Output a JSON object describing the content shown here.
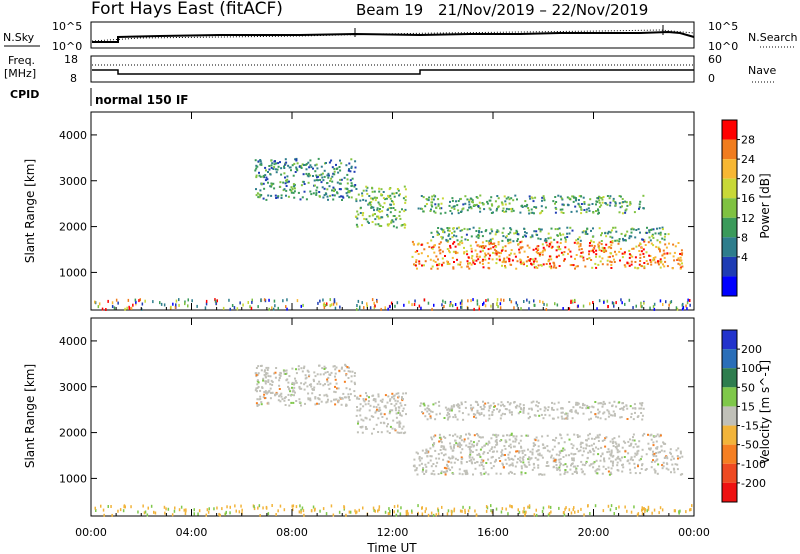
{
  "header": {
    "station": "Fort Hays East (fitACF)",
    "beam": "Beam 19",
    "dates": "21/Nov/2019 – 22/Nov/2019"
  },
  "noise_panel": {
    "left_label": "N.Sky",
    "right_label": "N.Search",
    "tick_top": "10^5",
    "tick_bottom": "10^0"
  },
  "freq_panel": {
    "left_label_1": "Freq.",
    "left_label_2": "[MHz]",
    "right_label": "Nave",
    "left_tick_top": "18",
    "left_tick_bottom": "8",
    "right_tick_top": "60",
    "right_tick_bottom": "0"
  },
  "cpid": {
    "label": "CPID",
    "mode": "normal 150 IF"
  },
  "x_axis": {
    "label": "Time UT",
    "ticks": [
      "00:00",
      "04:00",
      "08:00",
      "12:00",
      "16:00",
      "20:00",
      "00:00"
    ]
  },
  "colors": {
    "power_scale": [
      "#0000ff",
      "#1e3cb4",
      "#2e7d8c",
      "#3a9a5a",
      "#7fc241",
      "#c8d837",
      "#f7b733",
      "#f07c1e",
      "#ff0000"
    ],
    "velocity_scale": [
      "#2233cc",
      "#2a6eb8",
      "#2e7d4e",
      "#7fc84a",
      "#c0c0b8",
      "#f2b43a",
      "#f57f22",
      "#ee4a22",
      "#ee1111"
    ]
  },
  "chart_data": [
    {
      "type": "heatmap",
      "title": "Power",
      "xlabel": "Time UT",
      "ylabel": "Slant Range [km]",
      "xlim": [
        "00:00",
        "24:00"
      ],
      "ylim": [
        180,
        4500
      ],
      "y_ticks": [
        1000,
        2000,
        3000,
        4000
      ],
      "colorbar": {
        "label": "Power [dB]",
        "ticks": [
          4,
          8,
          12,
          16,
          20,
          24,
          28
        ],
        "range": [
          0,
          30
        ]
      },
      "features": [
        {
          "time_start": "06:30",
          "time_end": "10:30",
          "range_start": 2600,
          "range_end": 3500,
          "power_db": 10
        },
        {
          "time_start": "10:30",
          "time_end": "12:30",
          "range_start": 2000,
          "range_end": 2900,
          "power_db": 14
        },
        {
          "time_start": "12:45",
          "time_end": "23:30",
          "range_start": 1100,
          "range_end": 1700,
          "power_db": 24
        },
        {
          "time_start": "13:30",
          "time_end": "23:00",
          "range_start": 1700,
          "range_end": 2000,
          "power_db": 12
        },
        {
          "time_start": "13:00",
          "time_end": "22:00",
          "range_start": 2300,
          "range_end": 2700,
          "power_db": 12
        }
      ]
    },
    {
      "type": "heatmap",
      "title": "Velocity",
      "xlabel": "Time UT",
      "ylabel": "Slant Range [km]",
      "xlim": [
        "00:00",
        "24:00"
      ],
      "ylim": [
        180,
        4500
      ],
      "y_ticks": [
        1000,
        2000,
        3000,
        4000
      ],
      "colorbar": {
        "label": "Velocity [m s^-1]",
        "ticks": [
          "200",
          "100",
          "50",
          "15",
          "-15",
          "-50",
          "-100",
          "-200"
        ]
      }
    }
  ]
}
